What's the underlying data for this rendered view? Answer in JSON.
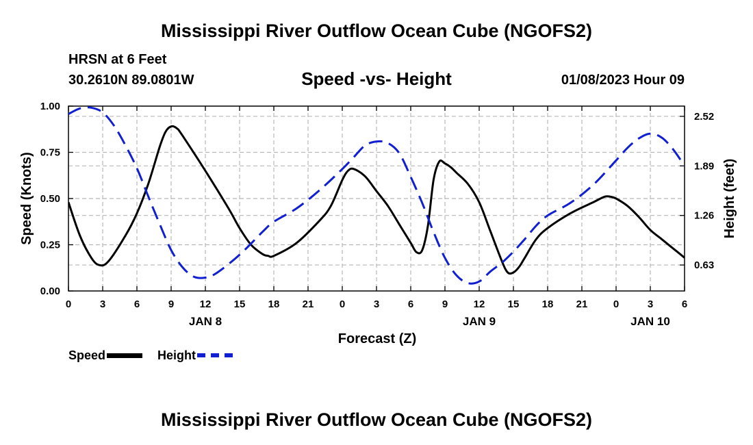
{
  "header": {
    "title": "Mississippi River Outflow Ocean Cube (NGOFS2)",
    "station": "HRSN at 6 Feet",
    "coords": "30.2610N  89.0801W",
    "subtitle": "Speed -vs- Height",
    "datetime": "01/08/2023 Hour 09"
  },
  "footer": {
    "title": "Mississippi River Outflow Ocean Cube (NGOFS2)"
  },
  "legend": {
    "speed_label": "Speed",
    "height_label": "Height"
  },
  "colors": {
    "speed": "#000000",
    "height": "#1020d0",
    "grid": "#b8b8b8"
  },
  "chart_data": {
    "type": "line",
    "title": "Speed -vs- Height",
    "xlabel": "Forecast (Z)",
    "ylabel": "Speed (Knots)",
    "y2label": "Height (feet)",
    "xlim": [
      0,
      54
    ],
    "ylim": [
      0,
      1
    ],
    "y2lim": [
      0.3,
      2.65
    ],
    "x_ticks": [
      0,
      3,
      6,
      9,
      12,
      15,
      18,
      21,
      24,
      27,
      30,
      33,
      36,
      39,
      42,
      45,
      48,
      51,
      54
    ],
    "x_tick_labels": [
      "0",
      "3",
      "6",
      "9",
      "12",
      "15",
      "18",
      "21",
      "0",
      "3",
      "6",
      "9",
      "12",
      "15",
      "18",
      "21",
      "0",
      "3",
      "6"
    ],
    "date_labels": [
      {
        "x": 12,
        "label": "JAN 8"
      },
      {
        "x": 36,
        "label": "JAN 9"
      },
      {
        "x": 51,
        "label": "JAN 10"
      }
    ],
    "y_ticks": [
      0,
      0.25,
      0.5,
      0.75,
      1.0
    ],
    "y_tick_labels": [
      "0.00",
      "0.25",
      "0.50",
      "0.75",
      "1.00"
    ],
    "y2_ticks": [
      0.63,
      1.26,
      1.89,
      2.52
    ],
    "y2_tick_labels": [
      "0.63",
      "1.26",
      "1.89",
      "2.52"
    ],
    "series": [
      {
        "name": "Speed",
        "axis": "left",
        "style": "solid",
        "x": [
          0,
          1,
          2,
          2.7,
          3.5,
          5,
          6,
          7,
          8,
          8.5,
          9,
          9.5,
          10,
          12,
          14,
          15,
          16,
          17,
          17.5,
          18,
          20,
          22,
          23,
          24,
          24.5,
          25,
          26,
          27,
          28,
          29,
          30,
          30.5,
          31,
          31.5,
          32,
          32.5,
          33,
          33.5,
          34,
          35,
          36,
          37,
          38,
          38.5,
          39,
          39.5,
          40,
          41,
          42,
          44,
          46,
          47,
          47.5,
          48,
          49,
          50,
          51,
          52,
          53,
          54
        ],
        "values": [
          0.48,
          0.3,
          0.18,
          0.14,
          0.16,
          0.3,
          0.42,
          0.58,
          0.78,
          0.86,
          0.89,
          0.88,
          0.84,
          0.65,
          0.45,
          0.34,
          0.25,
          0.2,
          0.19,
          0.19,
          0.26,
          0.38,
          0.46,
          0.6,
          0.65,
          0.66,
          0.62,
          0.54,
          0.46,
          0.36,
          0.26,
          0.21,
          0.22,
          0.35,
          0.6,
          0.7,
          0.69,
          0.67,
          0.64,
          0.58,
          0.48,
          0.32,
          0.16,
          0.1,
          0.1,
          0.13,
          0.18,
          0.28,
          0.34,
          0.42,
          0.48,
          0.51,
          0.51,
          0.5,
          0.46,
          0.4,
          0.33,
          0.28,
          0.23,
          0.18
        ]
      },
      {
        "name": "Height",
        "axis": "right",
        "style": "dashed",
        "x": [
          0,
          1,
          2,
          3,
          4,
          5,
          6,
          7,
          8,
          9,
          10,
          11,
          12,
          13,
          15,
          17,
          18,
          20,
          22,
          24,
          25,
          26,
          27,
          28,
          29,
          30,
          31,
          32,
          33,
          34,
          35,
          36,
          37,
          38,
          39,
          40,
          41,
          42,
          44,
          46,
          48,
          49,
          50,
          51,
          52,
          53,
          54
        ],
        "values": [
          2.55,
          2.62,
          2.63,
          2.57,
          2.4,
          2.15,
          1.86,
          1.5,
          1.15,
          0.82,
          0.6,
          0.48,
          0.47,
          0.53,
          0.76,
          1.05,
          1.18,
          1.35,
          1.58,
          1.85,
          2.0,
          2.15,
          2.2,
          2.18,
          2.05,
          1.75,
          1.42,
          1.05,
          0.72,
          0.5,
          0.4,
          0.42,
          0.55,
          0.66,
          0.8,
          0.96,
          1.13,
          1.26,
          1.42,
          1.65,
          1.96,
          2.12,
          2.24,
          2.3,
          2.25,
          2.1,
          1.89
        ]
      }
    ]
  }
}
